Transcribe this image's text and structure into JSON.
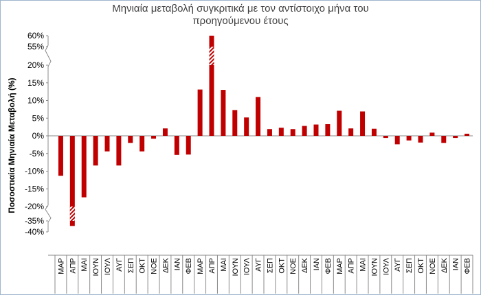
{
  "chart_data": {
    "type": "bar",
    "title_lines": [
      "Μηνιαία μεταβολή συγκριτικά με τον αντίστοιχο μήνα του",
      "προηγούμενου έτους"
    ],
    "ylabel": "Ποσοστιαία Μηνιαία Μεταβολή (%)",
    "yticks": [
      {
        "label": "60%",
        "value": 60
      },
      {
        "label": "55%",
        "value": 55
      },
      {
        "label": "20%",
        "value": 20
      },
      {
        "label": "15%",
        "value": 15
      },
      {
        "label": "10%",
        "value": 10
      },
      {
        "label": "5%",
        "value": 5
      },
      {
        "label": "0%",
        "value": 0
      },
      {
        "label": "-5%",
        "value": -5
      },
      {
        "label": "-10%",
        "value": -10
      },
      {
        "label": "-15%",
        "value": -15
      },
      {
        "label": "-20%",
        "value": -20
      },
      {
        "label": "-35%",
        "value": -35
      },
      {
        "label": "-40%",
        "value": -40
      }
    ],
    "axis_breaks": [
      [
        20,
        55
      ],
      [
        -35,
        -20
      ]
    ],
    "categories": [
      "ΜΑΡ",
      "ΑΠΡ",
      "ΜΑΙ",
      "ΙΟΥΝ",
      "ΙΟΥΛ",
      "ΑΥΓ",
      "ΣΕΠ",
      "ΟΚΤ",
      "ΝΟΕ",
      "ΔΕΚ",
      "ΙΑΝ",
      "ΦΕΒ",
      "ΜΑΡ",
      "ΑΠΡ",
      "ΜΑΙ",
      "ΙΟΥΝ",
      "ΙΟΥΛ",
      "ΑΥΓ",
      "ΣΕΠ",
      "ΟΚΤ",
      "ΝΟΕ",
      "ΔΕΚ",
      "ΙΑΝ",
      "ΦΕΒ",
      "ΜΑΡ",
      "ΑΠΡ",
      "ΜΑΙ",
      "ΙΟΥΝ",
      "ΙΟΥΛ",
      "ΑΥΓ",
      "ΣΕΠ",
      "ΟΚΤ",
      "ΝΟΕ",
      "ΔΕΚ",
      "ΙΑΝ",
      "ΦΕΒ"
    ],
    "values": [
      -11.3,
      -37.3,
      -17.4,
      -8.4,
      -4.4,
      -8.4,
      -2.0,
      -4.4,
      -0.8,
      2.1,
      -5.4,
      -5.3,
      13.1,
      60.0,
      13.0,
      7.3,
      5.2,
      11.0,
      1.9,
      2.3,
      1.9,
      2.8,
      3.2,
      3.3,
      7.1,
      2.1,
      6.9,
      2.0,
      -0.6,
      -2.4,
      -1.3,
      -1.9,
      0.9,
      -2.0,
      -0.6,
      0.6
    ],
    "bar_color": "#c00000",
    "grid": false,
    "legend": "none"
  }
}
